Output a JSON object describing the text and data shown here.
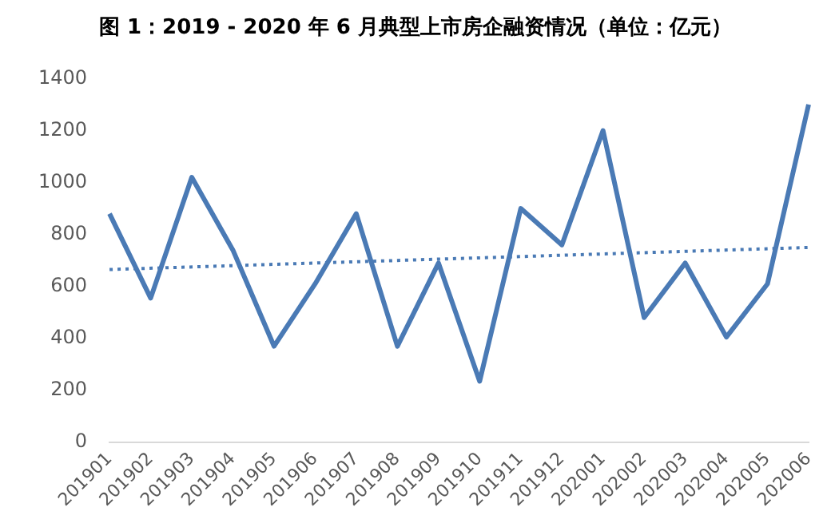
{
  "chart_data": {
    "type": "line",
    "title": "图 1：2019 - 2020 年 6 月典型上市房企融资情况（单位：亿元）",
    "categories": [
      "201901",
      "201902",
      "201903",
      "201904",
      "201905",
      "201906",
      "201907",
      "201908",
      "201909",
      "201910",
      "201911",
      "201912",
      "202001",
      "202002",
      "202003",
      "202004",
      "202005",
      "202006"
    ],
    "series": [
      {
        "color": "#4a7ab5",
        "values": [
          880,
          555,
          1020,
          740,
          370,
          610,
          880,
          370,
          690,
          235,
          900,
          760,
          1200,
          480,
          690,
          405,
          610,
          1300
        ]
      },
      {
        "color": "#4a7ab5",
        "line_style": "dotted",
        "values": [
          665,
          null,
          null,
          null,
          null,
          null,
          null,
          null,
          null,
          null,
          null,
          null,
          null,
          null,
          null,
          null,
          null,
          750
        ]
      }
    ],
    "ylim": [
      0,
      1400
    ],
    "yticks": [
      0,
      200,
      400,
      600,
      800,
      1000,
      1200,
      1400
    ],
    "grid": false,
    "legend": false,
    "marker": "none"
  }
}
